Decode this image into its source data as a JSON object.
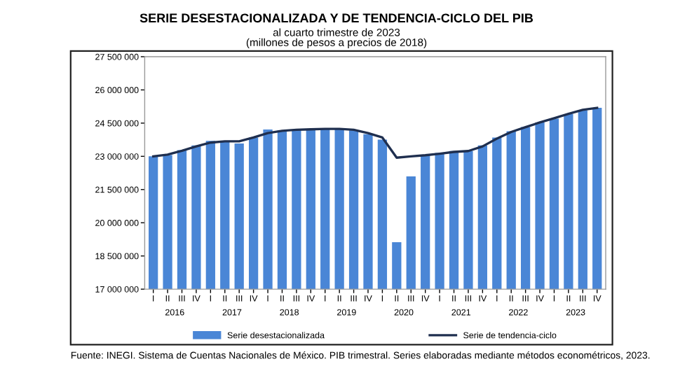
{
  "chart_data": {
    "type": "bar",
    "title": "SERIE DESESTACIONALIZADA Y DE TENDENCIA-CICLO DEL PIB",
    "subtitle": "al cuarto trimestre de 2023\n(millones de pesos a precios de 2018)",
    "categories": [
      "I",
      "II",
      "III",
      "IV",
      "I",
      "II",
      "III",
      "IV",
      "I",
      "II",
      "III",
      "IV",
      "I",
      "II",
      "III",
      "IV",
      "I",
      "II",
      "III",
      "IV",
      "I",
      "II",
      "III",
      "IV",
      "I",
      "II",
      "III",
      "IV",
      "I",
      "II",
      "III",
      "IV"
    ],
    "series": [
      {
        "name": "Serie desestacionalizada",
        "color": "#4a86d6",
        "values": [
          23000000,
          23060000,
          23280000,
          23490000,
          23700000,
          23700000,
          23580000,
          23850000,
          24210000,
          24170000,
          24210000,
          24210000,
          24210000,
          24210000,
          24170000,
          24000000,
          23750000,
          19120000,
          22090000,
          23050000,
          23150000,
          23240000,
          23240000,
          23490000,
          23850000,
          24130000,
          24320000,
          24530000,
          24700000,
          24910000,
          25080000,
          25190000
        ]
      },
      {
        "name": "Serie de tendencia-ciclo",
        "type": "line",
        "color": "#1f2f4f",
        "values": [
          23000000,
          23080000,
          23250000,
          23450000,
          23620000,
          23680000,
          23680000,
          23850000,
          24050000,
          24150000,
          24200000,
          24220000,
          24240000,
          24240000,
          24200000,
          24050000,
          23850000,
          22940000,
          23000000,
          23050000,
          23120000,
          23200000,
          23240000,
          23450000,
          23800000,
          24100000,
          24320000,
          24530000,
          24720000,
          24920000,
          25100000,
          25190000
        ]
      }
    ],
    "ylim": [
      17000000,
      27500000
    ],
    "yticks": [
      {
        "value": 17000000,
        "label": "17 000 000"
      },
      {
        "value": 18500000,
        "label": "18 500 000"
      },
      {
        "value": 20000000,
        "label": "20 000 000"
      },
      {
        "value": 21500000,
        "label": "21 500 000"
      },
      {
        "value": 23000000,
        "label": "23 000 000"
      },
      {
        "value": 24500000,
        "label": "24 500 000"
      },
      {
        "value": 26000000,
        "label": "26 000 000"
      },
      {
        "value": 27500000,
        "label": "27 500 000"
      }
    ],
    "annotations": [
      "2016",
      "2017",
      "2018",
      "2019",
      "2020",
      "2021",
      "2022",
      "2023",
      "Fuente: INEGI. Sistema de Cuentas Nacionales de México. PIB trimestral. Series elaboradas mediante métodos econométricos, 2023."
    ],
    "legend": "bottom",
    "grid": false
  }
}
